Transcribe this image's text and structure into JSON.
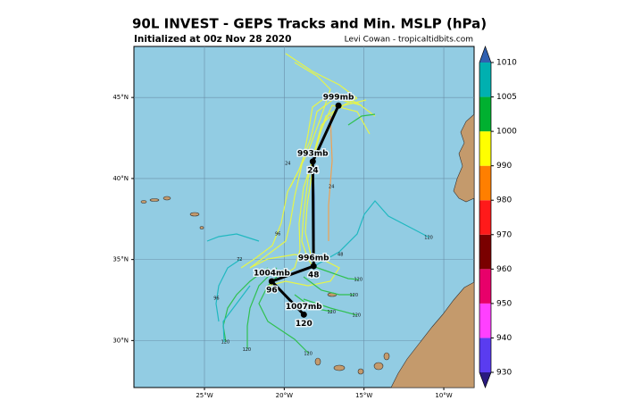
{
  "chart_data": {
    "type": "map",
    "title": "90L INVEST - GEPS Tracks and Min. MSLP (hPa)",
    "subtitle": "Initialized at 00z Nov 28 2020",
    "credit": "Levi Cowan - tropicaltidbits.com",
    "xlim": [
      -29.42,
      -8.1
    ],
    "ylim": [
      27.1,
      48.15
    ],
    "xticks": [
      {
        "value": -25,
        "label": "25°W"
      },
      {
        "value": -20,
        "label": "20°W"
      },
      {
        "value": -15,
        "label": "15°W"
      },
      {
        "value": -10,
        "label": "10°W"
      }
    ],
    "yticks": [
      {
        "value": 30,
        "label": "30°N"
      },
      {
        "value": 35,
        "label": "35°N"
      },
      {
        "value": 40,
        "label": "40°N"
      },
      {
        "value": 45,
        "label": "45°N"
      }
    ],
    "grid": true,
    "colorbar": {
      "ticks": [
        930,
        940,
        950,
        960,
        970,
        980,
        990,
        1000,
        1005,
        1010
      ],
      "colors": [
        "#5a3cf0",
        "#ff40ff",
        "#e8006a",
        "#7a0000",
        "#ff1a1a",
        "#ff7f00",
        "#ffff00",
        "#00b030",
        "#00b0b0"
      ],
      "low_color": "#2a1a80",
      "high_color": "#3060b0"
    },
    "mean_track": {
      "color": "#000000",
      "lon": [
        -16.6,
        -18.21,
        -18.16,
        -20.78,
        -18.77
      ],
      "lat": [
        44.5,
        41.05,
        34.59,
        33.65,
        31.6
      ],
      "pressure_labels": [
        "999mb",
        "993mb",
        "996mb",
        "1004mb",
        "1007mb"
      ],
      "hour_labels": [
        null,
        "24",
        "48",
        "96",
        "120"
      ]
    },
    "member_hour_labels": {
      "lon": [
        -10.95,
        -15.36,
        -15.64,
        -17.04,
        -15.47,
        -23.69,
        -22.35,
        -18.5,
        -17.04,
        -19.78,
        -22.8,
        -20.4,
        -16.48,
        -24.25
      ],
      "lat": [
        36.35,
        33.76,
        32.8,
        31.77,
        31.55,
        29.9,
        29.45,
        29.2,
        39.5,
        40.94,
        35.0,
        36.57,
        35.3,
        32.6
      ],
      "labels": [
        "120",
        "120",
        "120",
        "120",
        "120",
        "120",
        "120",
        "120",
        "24",
        "24",
        "72",
        "96",
        "48",
        "96"
      ]
    }
  }
}
